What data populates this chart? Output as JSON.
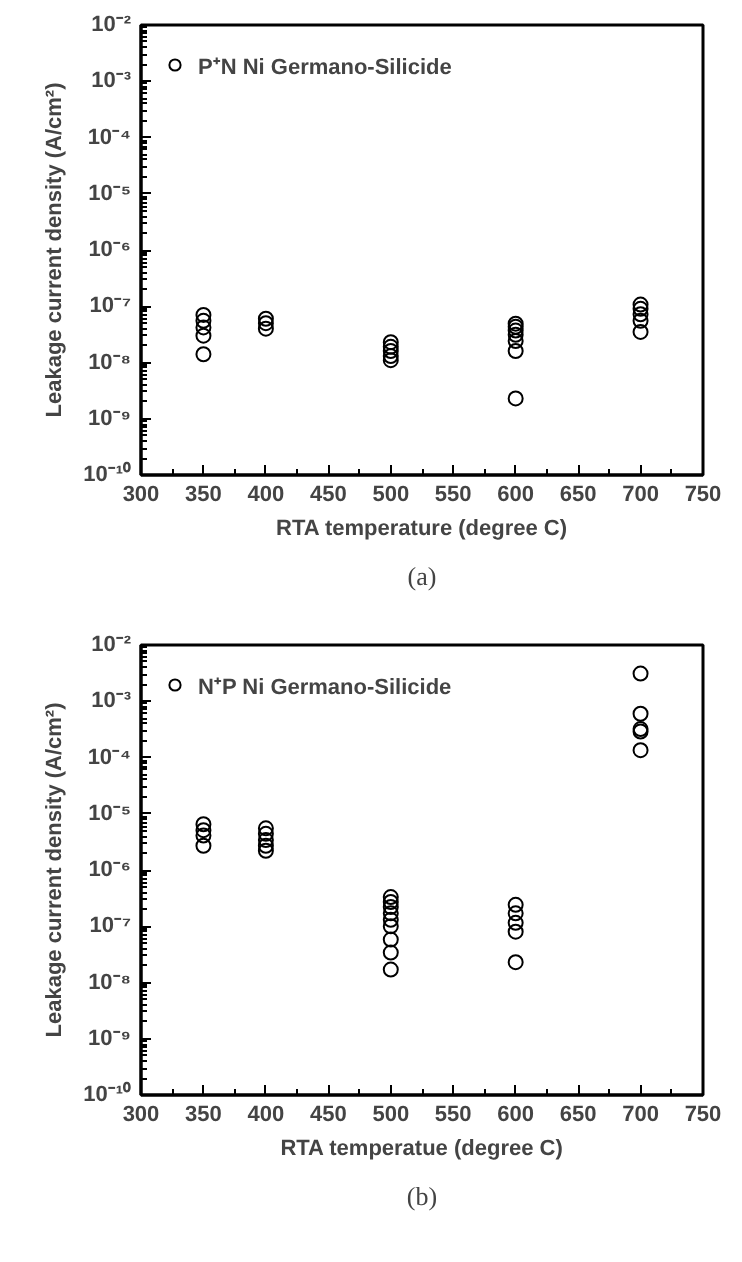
{
  "chart_data": [
    {
      "type": "scatter",
      "xlabel": "RTA temperature (degree C)",
      "ylabel": "Leakage current density (A/cm²)",
      "annotations": [
        "(a)"
      ],
      "log": "y",
      "grid": false,
      "legend": "top left",
      "marker": "circle",
      "xlim": [
        300,
        750
      ],
      "xticks": [
        300,
        350,
        400,
        450,
        500,
        550,
        600,
        650,
        700,
        750
      ],
      "ylim": [
        1e-10,
        0.01
      ],
      "yticks": [
        {
          "value": 1e-10,
          "label": "10⁻¹⁰"
        },
        {
          "value": 1e-09,
          "label": "10⁻⁹"
        },
        {
          "value": 1e-08,
          "label": "10⁻⁸"
        },
        {
          "value": 1e-07,
          "label": "10⁻⁷"
        },
        {
          "value": 1e-06,
          "label": "10⁻⁶"
        },
        {
          "value": 1e-05,
          "label": "10⁻⁵"
        },
        {
          "value": 0.0001,
          "label": "10⁻⁴"
        },
        {
          "value": 0.001,
          "label": "10⁻³"
        },
        {
          "value": 0.01,
          "label": "10⁻²"
        }
      ],
      "series": [
        {
          "name": "P⁺N Ni Germano-Silicide",
          "color": "#000000",
          "x": [
            350,
            350,
            350,
            350,
            350,
            400,
            400,
            400,
            500,
            500,
            500,
            500,
            500,
            600,
            600,
            600,
            600,
            600,
            600,
            600,
            700,
            700,
            700,
            700,
            700
          ],
          "values": [
            7e-08,
            5.5e-08,
            4.2e-08,
            3e-08,
            1.4e-08,
            6e-08,
            5e-08,
            4e-08,
            2.3e-08,
            1.9e-08,
            1.6e-08,
            1.3e-08,
            1.1e-08,
            4.9e-08,
            4.3e-08,
            3.7e-08,
            3.1e-08,
            2.4e-08,
            1.6e-08,
            2.3e-09,
            1.07e-07,
            9e-08,
            7.2e-08,
            5.5e-08,
            3.5e-08
          ]
        }
      ]
    },
    {
      "type": "scatter",
      "xlabel": "RTA temperatue (degree C)",
      "ylabel": "Leakage current density (A/cm²)",
      "annotations": [
        "(b)"
      ],
      "log": "y",
      "grid": false,
      "legend": "top left",
      "marker": "circle",
      "xlim": [
        300,
        750
      ],
      "xticks": [
        300,
        350,
        400,
        450,
        500,
        550,
        600,
        650,
        700,
        750
      ],
      "ylim": [
        1e-10,
        0.01
      ],
      "yticks": [
        {
          "value": 1e-10,
          "label": "10⁻¹⁰"
        },
        {
          "value": 1e-09,
          "label": "10⁻⁹"
        },
        {
          "value": 1e-08,
          "label": "10⁻⁸"
        },
        {
          "value": 1e-07,
          "label": "10⁻⁷"
        },
        {
          "value": 1e-06,
          "label": "10⁻⁶"
        },
        {
          "value": 1e-05,
          "label": "10⁻⁵"
        },
        {
          "value": 0.0001,
          "label": "10⁻⁴"
        },
        {
          "value": 0.001,
          "label": "10⁻³"
        },
        {
          "value": 0.01,
          "label": "10⁻²"
        }
      ],
      "series": [
        {
          "name": "N⁺P Ni Germano-Silicide",
          "color": "#000000",
          "x": [
            350,
            350,
            350,
            350,
            400,
            400,
            400,
            400,
            400,
            500,
            500,
            500,
            500,
            500,
            500,
            500,
            500,
            500,
            600,
            600,
            600,
            600,
            600,
            700,
            700,
            700,
            700,
            700
          ],
          "values": [
            6.5e-06,
            5.1e-06,
            4.1e-06,
            2.7e-06,
            5.5e-06,
            4.4e-06,
            3.4e-06,
            2.7e-06,
            2.2e-06,
            3.3e-07,
            2.7e-07,
            2.2e-07,
            1.7e-07,
            1.3e-07,
            1e-07,
            5.8e-08,
            3.4e-08,
            1.7e-08,
            2.4e-07,
            1.7e-07,
            1.15e-07,
            8e-08,
            2.3e-08,
            0.0031,
            0.0006,
            0.00032,
            0.00029,
            0.000135
          ]
        }
      ]
    }
  ]
}
